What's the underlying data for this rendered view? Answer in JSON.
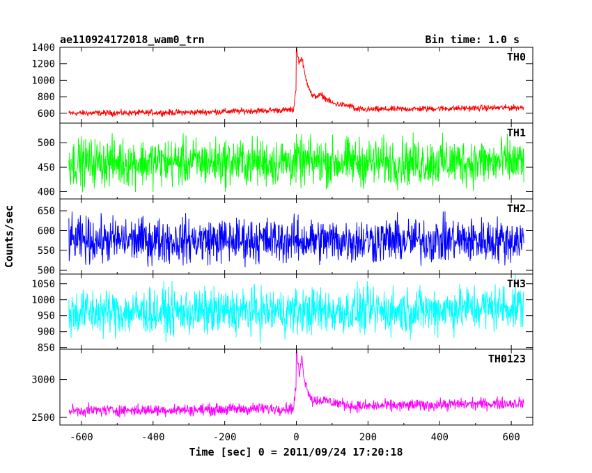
{
  "header": {
    "left": "ae110924172018_wam0_trn",
    "right": "Bin time: 1.0 s"
  },
  "colors": {
    "TH0": "#ff0000",
    "TH1": "#00ff00",
    "TH2": "#0000ff",
    "TH3": "#00ffff",
    "TH0123": "#ff00ff"
  },
  "chart_data": {
    "type": "line",
    "title": "ae110924172018_wam0_trn",
    "bin_time": "Bin time: 1.0 s",
    "xlabel": "Time [sec] 0 = 2011/09/24 17:20:18",
    "ylabel": "Counts/sec",
    "xlim": [
      -660,
      660
    ],
    "xticks": [
      -600,
      -400,
      -200,
      0,
      200,
      400,
      600
    ],
    "x_range": [
      -635,
      635
    ],
    "panels": [
      {
        "name": "TH0",
        "ylim": [
          480,
          1400
        ],
        "yticks": [
          600,
          800,
          1000,
          1200,
          1400
        ],
        "series": {
          "baseline": [
            [
              -635,
              600
            ],
            [
              -300,
              610
            ],
            [
              -20,
              640
            ],
            [
              100,
              640
            ],
            [
              635,
              670
            ]
          ],
          "noise": 18,
          "features": [
            [
              0,
              1400
            ],
            [
              8,
              1210
            ],
            [
              15,
              1280
            ],
            [
              25,
              1040
            ],
            [
              45,
              800
            ],
            [
              70,
              820
            ],
            [
              100,
              720
            ],
            [
              160,
              680
            ]
          ]
        }
      },
      {
        "name": "TH1",
        "ylim": [
          385,
          540
        ],
        "yticks": [
          400,
          450,
          500
        ],
        "series": {
          "baseline": [
            [
              -635,
              460
            ],
            [
              635,
              460
            ]
          ],
          "noise": 24,
          "features": []
        }
      },
      {
        "name": "TH2",
        "ylim": [
          490,
          680
        ],
        "yticks": [
          500,
          550,
          600,
          650
        ],
        "series": {
          "baseline": [
            [
              -635,
              575
            ],
            [
              635,
              575
            ]
          ],
          "noise": 28,
          "features": []
        }
      },
      {
        "name": "TH3",
        "ylim": [
          845,
          1080
        ],
        "yticks": [
          850,
          900,
          950,
          1000,
          1050
        ],
        "series": {
          "baseline": [
            [
              -635,
              960
            ],
            [
              300,
              965
            ],
            [
              635,
              980
            ]
          ],
          "noise": 36,
          "features": []
        }
      },
      {
        "name": "TH0123",
        "ylim": [
          2400,
          3400
        ],
        "yticks": [
          2500,
          3000
        ],
        "series": {
          "baseline": [
            [
              -635,
              2590
            ],
            [
              -300,
              2600
            ],
            [
              -20,
              2620
            ],
            [
              100,
              2640
            ],
            [
              635,
              2690
            ]
          ],
          "noise": 38,
          "features": [
            [
              0,
              3400
            ],
            [
              8,
              3050
            ],
            [
              15,
              3280
            ],
            [
              25,
              2950
            ],
            [
              45,
              2720
            ],
            [
              70,
              2730
            ],
            [
              100,
              2700
            ],
            [
              160,
              2650
            ]
          ]
        }
      }
    ]
  }
}
